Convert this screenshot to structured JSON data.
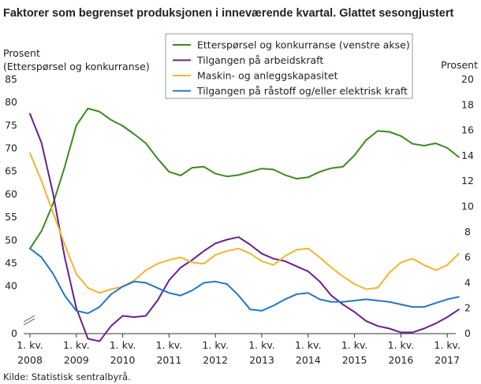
{
  "title": "Faktorer som begrenset produksjonen i inneværende kvartal. Glattet sesongjustert",
  "left_axis_label": [
    "Prosent",
    "(Etterspørsel  og konkurranse)"
  ],
  "right_axis_label": "Prosent",
  "source": "Kilde: Statistisk sentralbyrå.",
  "chart_data": {
    "type": "line",
    "title": "Faktorer som begrenset produksjonen i inneværende kvartal. Glattet sesongjustert",
    "x_label": "",
    "x": [
      "2008Q1",
      "2008Q2",
      "2008Q3",
      "2008Q4",
      "2009Q1",
      "2009Q2",
      "2009Q3",
      "2009Q4",
      "2010Q1",
      "2010Q2",
      "2010Q3",
      "2010Q4",
      "2011Q1",
      "2011Q2",
      "2011Q3",
      "2011Q4",
      "2012Q1",
      "2012Q2",
      "2012Q3",
      "2012Q4",
      "2013Q1",
      "2013Q2",
      "2013Q3",
      "2013Q4",
      "2014Q1",
      "2014Q2",
      "2014Q3",
      "2014Q4",
      "2015Q1",
      "2015Q2",
      "2015Q3",
      "2015Q4",
      "2016Q1",
      "2016Q2",
      "2016Q3",
      "2016Q4",
      "2017Q1",
      "2017Q2"
    ],
    "x_ticks": [
      {
        "line1": "1. kv.",
        "line2": "2008",
        "index": 0
      },
      {
        "line1": "1. kv.",
        "line2": "2009",
        "index": 4
      },
      {
        "line1": "1. kv.",
        "line2": "2010",
        "index": 8
      },
      {
        "line1": "1. kv.",
        "line2": "2011",
        "index": 12
      },
      {
        "line1": "1. kv.",
        "line2": "2012",
        "index": 16
      },
      {
        "line1": "1. kv.",
        "line2": "2013",
        "index": 20
      },
      {
        "line1": "1. kv.",
        "line2": "2014",
        "index": 24
      },
      {
        "line1": "1. kv.",
        "line2": "2015",
        "index": 28
      },
      {
        "line1": "1. kv.",
        "line2": "2016",
        "index": 32
      },
      {
        "line1": "1. kv.",
        "line2": "2017",
        "index": 36
      }
    ],
    "left_axis": {
      "ticks": [
        "85",
        "80",
        "75",
        "70",
        "65",
        "60",
        "55",
        "50",
        "45",
        "40",
        "0"
      ],
      "values": [
        85,
        80,
        75,
        70,
        65,
        60,
        55,
        50,
        45,
        40
      ],
      "broken_axis": true,
      "bottom_label": "0"
    },
    "right_axis": {
      "ticks": [
        "20",
        "18",
        "16",
        "14",
        "12",
        "10",
        "8",
        "6",
        "4",
        "2",
        "0"
      ],
      "range": [
        0,
        20
      ]
    },
    "legend_position": "top-center",
    "grid": false,
    "series": [
      {
        "name": "Etterspørsel og konkurranse (venstre akse)",
        "axis": "left",
        "color": "#3a8a1e",
        "values": [
          48.2,
          52.0,
          58.0,
          66.0,
          75.0,
          78.7,
          78.0,
          76.2,
          74.9,
          73.1,
          71.1,
          67.8,
          64.9,
          64.1,
          65.8,
          66.0,
          64.5,
          63.9,
          64.2,
          64.9,
          65.6,
          65.4,
          64.2,
          63.4,
          63.7,
          64.9,
          65.7,
          66.0,
          68.5,
          71.8,
          73.8,
          73.6,
          72.7,
          71.0,
          70.6,
          71.1,
          70.1,
          68.1
        ]
      },
      {
        "name": "Tilgangen på arbeidskraft",
        "axis": "right",
        "color": "#6b1f8c",
        "values": [
          17.3,
          15.0,
          11.0,
          6.0,
          2.0,
          -0.4,
          -0.6,
          0.6,
          1.4,
          1.3,
          1.4,
          2.6,
          4.2,
          5.2,
          5.8,
          6.5,
          7.1,
          7.4,
          7.6,
          7.0,
          6.3,
          5.9,
          5.7,
          5.3,
          4.9,
          4.1,
          3.0,
          2.3,
          1.7,
          1.0,
          0.6,
          0.4,
          0.1,
          0.1,
          0.4,
          0.8,
          1.3,
          1.9
        ]
      },
      {
        "name": "Maskin- og anleggskapasitet",
        "axis": "right",
        "color": "#f2b530",
        "values": [
          14.2,
          12.0,
          9.5,
          7.0,
          4.7,
          3.6,
          3.2,
          3.5,
          3.7,
          4.2,
          5.0,
          5.5,
          5.8,
          6.0,
          5.6,
          5.5,
          6.2,
          6.5,
          6.7,
          6.3,
          5.7,
          5.4,
          6.1,
          6.6,
          6.7,
          6.0,
          5.2,
          4.5,
          3.9,
          3.5,
          3.6,
          4.8,
          5.6,
          5.9,
          5.4,
          5.0,
          5.4,
          6.3
        ]
      },
      {
        "name": "Tilgangen på råstoff og/eller elektrisk kraft",
        "axis": "right",
        "color": "#2277c4",
        "values": [
          6.7,
          6.0,
          4.7,
          3.0,
          1.8,
          1.6,
          2.1,
          3.1,
          3.7,
          4.1,
          4.0,
          3.6,
          3.2,
          3.0,
          3.4,
          4.0,
          4.1,
          3.9,
          3.0,
          1.9,
          1.8,
          2.2,
          2.7,
          3.1,
          3.2,
          2.7,
          2.5,
          2.5,
          2.6,
          2.7,
          2.6,
          2.5,
          2.3,
          2.1,
          2.1,
          2.4,
          2.7,
          2.9
        ]
      }
    ]
  }
}
